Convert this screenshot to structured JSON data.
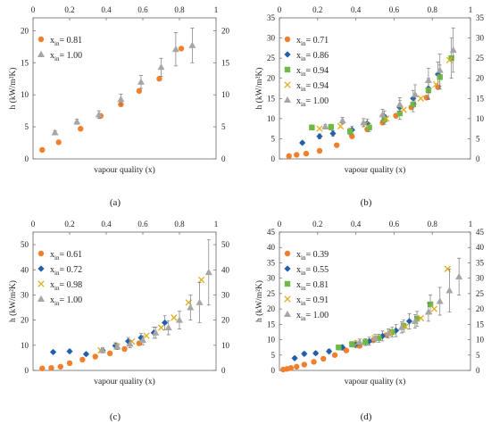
{
  "chart_data": [
    {
      "panel": "(a)",
      "type": "scatter",
      "xlabel": "vapour quality (x)",
      "ylabel": "h (kW/m²K)",
      "xlim": [
        0,
        1
      ],
      "ylim": [
        0,
        22
      ],
      "xticks": [
        "0",
        "0.2",
        "0.4",
        "0.6",
        "0.8",
        "1"
      ],
      "yticks": [
        0,
        5,
        10,
        15,
        20
      ],
      "yticks_right": [
        0,
        5,
        10,
        15,
        20
      ],
      "legend_pos": "top-left",
      "series": [
        {
          "name": "0.81",
          "marker": "circle",
          "color": "#f07f2e",
          "x": [
            0.05,
            0.14,
            0.26,
            0.37,
            0.48,
            0.58,
            0.69,
            0.81
          ],
          "y": [
            1.4,
            2.6,
            4.7,
            6.7,
            8.5,
            10.6,
            12.5,
            17.2
          ],
          "err": [
            0,
            0,
            0,
            0,
            0,
            0,
            0,
            0
          ]
        },
        {
          "name": "1.00",
          "marker": "triangle",
          "color": "#a6a6a6",
          "x": [
            0.12,
            0.24,
            0.36,
            0.48,
            0.59,
            0.7,
            0.78,
            0.87
          ],
          "y": [
            4.1,
            5.8,
            6.9,
            9.3,
            12.0,
            14.3,
            17.1,
            17.7
          ],
          "err": [
            0.3,
            0.4,
            0.6,
            0.8,
            1.0,
            1.4,
            2.6,
            2.7
          ]
        }
      ]
    },
    {
      "panel": "(b)",
      "type": "scatter",
      "xlabel": "vapour quality (x)",
      "ylabel": "h (kW/m²K)",
      "xlim": [
        0,
        1
      ],
      "ylim": [
        0,
        35
      ],
      "xticks": [
        "0",
        "0.2",
        "0.4",
        "0.6",
        "0.8",
        "1"
      ],
      "yticks": [
        0,
        5,
        10,
        15,
        20,
        25,
        30,
        35
      ],
      "yticks_right": [
        0,
        5,
        10,
        15,
        20,
        25,
        30,
        35
      ],
      "legend_pos": "top-left",
      "series": [
        {
          "name": "0.71",
          "marker": "circle",
          "color": "#f07f2e",
          "x": [
            0.05,
            0.09,
            0.14,
            0.21,
            0.3,
            0.38,
            0.46,
            0.54,
            0.61,
            0.69,
            0.77,
            0.83
          ],
          "y": [
            0.7,
            1.0,
            1.3,
            2.0,
            3.4,
            5.6,
            7.3,
            9.0,
            10.7,
            12.8,
            15.2,
            17.8
          ],
          "err": [
            0,
            0,
            0,
            0,
            0,
            0,
            0,
            0,
            0,
            0,
            0,
            0
          ]
        },
        {
          "name": "0.86",
          "marker": "diamond",
          "color": "#1f5fae",
          "x": [
            0.12,
            0.21,
            0.28,
            0.38,
            0.46,
            0.55,
            0.63,
            0.7,
            0.78,
            0.83
          ],
          "y": [
            4.0,
            5.6,
            6.3,
            7.2,
            8.8,
            10.5,
            12.8,
            15.0,
            17.5,
            21.0
          ],
          "err": [
            0.4,
            0.6,
            0.7,
            0.9,
            1.1,
            1.4,
            1.7,
            2.0,
            2.5,
            3.0
          ]
        },
        {
          "name": "0.94",
          "marker": "square",
          "color": "#6dba45",
          "x": [
            0.17,
            0.27,
            0.37,
            0.47,
            0.55,
            0.63,
            0.7,
            0.78,
            0.84,
            0.9
          ],
          "y": [
            7.8,
            7.9,
            6.8,
            7.8,
            9.8,
            11.3,
            13.5,
            17.0,
            20.3,
            25.0
          ],
          "err": [
            0.6,
            0.7,
            0.8,
            1.0,
            1.2,
            1.5,
            1.8,
            2.3,
            3.0,
            5.0
          ]
        },
        {
          "name": "0.94",
          "marker": "x",
          "color": "#e0ad1d",
          "x": [
            0.21,
            0.32,
            0.45,
            0.56,
            0.65,
            0.74,
            0.82,
            0.89
          ],
          "y": [
            7.5,
            8.1,
            8.6,
            10.0,
            12.2,
            15.0,
            18.5,
            24.5
          ],
          "err": [
            0,
            0,
            0,
            0,
            0,
            0,
            0,
            0
          ]
        },
        {
          "name": "1.00",
          "marker": "triangle",
          "color": "#a6a6a6",
          "x": [
            0.24,
            0.33,
            0.44,
            0.54,
            0.63,
            0.71,
            0.78,
            0.84,
            0.91
          ],
          "y": [
            8.0,
            9.5,
            9.0,
            11.0,
            13.5,
            16.0,
            19.5,
            22.0,
            27.0
          ],
          "err": [
            0.6,
            0.8,
            1.0,
            1.3,
            1.7,
            2.4,
            3.0,
            4.0,
            5.5
          ]
        }
      ]
    },
    {
      "panel": "(c)",
      "type": "scatter",
      "xlabel": "vapour quality (x)",
      "ylabel": "h (kW/m²K)",
      "xlim": [
        0,
        1
      ],
      "ylim": [
        0,
        55
      ],
      "xticks": [
        "0",
        "0.2",
        "0.4",
        "0.6",
        "0.8",
        "1"
      ],
      "yticks": [
        0,
        10,
        20,
        30,
        40,
        50
      ],
      "yticks_right": [
        0,
        10,
        20,
        30,
        40,
        50
      ],
      "legend_pos": "top-left",
      "series": [
        {
          "name": "0.61",
          "marker": "circle",
          "color": "#f07f2e",
          "x": [
            0.05,
            0.1,
            0.15,
            0.2,
            0.27,
            0.34,
            0.42,
            0.5,
            0.58
          ],
          "y": [
            0.8,
            1.0,
            1.5,
            2.9,
            4.3,
            5.5,
            6.8,
            8.5,
            10.8
          ],
          "err": [
            0,
            0,
            0,
            0,
            0,
            0,
            0,
            0,
            0
          ]
        },
        {
          "name": "0.72",
          "marker": "diamond",
          "color": "#1f5fae",
          "x": [
            0.11,
            0.2,
            0.29,
            0.38,
            0.45,
            0.52,
            0.59,
            0.66,
            0.72
          ],
          "y": [
            7.3,
            7.6,
            6.5,
            8.0,
            9.8,
            11.6,
            13.0,
            15.0,
            19.0
          ],
          "err": [
            0.6,
            0.6,
            0.7,
            0.9,
            1.2,
            1.5,
            1.8,
            2.2,
            2.8
          ]
        },
        {
          "name": "0.98",
          "marker": "x",
          "color": "#e0ad1d",
          "x": [
            0.37,
            0.46,
            0.54,
            0.62,
            0.7,
            0.77,
            0.85,
            0.92
          ],
          "y": [
            8.0,
            9.5,
            11.5,
            13.8,
            17.0,
            21.0,
            27.0,
            36.0
          ],
          "err": [
            0,
            0,
            0,
            0,
            0,
            0,
            0,
            0
          ]
        },
        {
          "name": "1.00",
          "marker": "triangle",
          "color": "#a6a6a6",
          "x": [
            0.38,
            0.46,
            0.53,
            0.6,
            0.67,
            0.74,
            0.8,
            0.86,
            0.91,
            0.96
          ],
          "y": [
            8.0,
            9.5,
            10.5,
            12.0,
            15.0,
            17.0,
            20.0,
            25.0,
            27.0,
            39.0
          ],
          "err": [
            1.0,
            1.2,
            1.4,
            1.8,
            2.2,
            2.8,
            3.5,
            5.0,
            8.0,
            13.0
          ]
        }
      ]
    },
    {
      "panel": "(d)",
      "type": "scatter",
      "xlabel": "vapour quality (x)",
      "ylabel": "h (kW/m²K)",
      "xlim": [
        0,
        1
      ],
      "ylim": [
        0,
        45
      ],
      "xticks": [
        "0",
        "0.2",
        "0.4",
        "0.6",
        "0.8",
        "1"
      ],
      "yticks": [
        0,
        5,
        10,
        15,
        20,
        25,
        30,
        35,
        40,
        45
      ],
      "yticks_right": [
        0,
        5,
        10,
        15,
        20,
        25,
        30,
        35,
        40,
        45
      ],
      "legend_pos": "top-left",
      "series": [
        {
          "name": "0.39",
          "marker": "circle",
          "color": "#f07f2e",
          "x": [
            0.02,
            0.04,
            0.06,
            0.09,
            0.13,
            0.18,
            0.23,
            0.29,
            0.35,
            0.42,
            0.49,
            0.56
          ],
          "y": [
            0.3,
            0.5,
            0.8,
            1.2,
            1.9,
            2.8,
            3.8,
            5.0,
            6.5,
            8.0,
            9.8,
            11.5
          ],
          "err": [
            0,
            0,
            0,
            0,
            0,
            0,
            0,
            0,
            0,
            0,
            0,
            0
          ]
        },
        {
          "name": "0.55",
          "marker": "diamond",
          "color": "#1f5fae",
          "x": [
            0.08,
            0.13,
            0.19,
            0.26,
            0.33,
            0.4,
            0.47,
            0.54,
            0.61,
            0.68
          ],
          "y": [
            4.0,
            5.4,
            5.6,
            6.2,
            7.5,
            8.5,
            9.5,
            11.2,
            13.0,
            16.0
          ],
          "err": [
            0.5,
            0.6,
            0.6,
            0.7,
            0.9,
            1.1,
            1.3,
            1.6,
            2.0,
            2.5
          ]
        },
        {
          "name": "0.81",
          "marker": "square",
          "color": "#6dba45",
          "x": [
            0.31,
            0.38,
            0.45,
            0.52,
            0.59,
            0.65,
            0.72,
            0.79
          ],
          "y": [
            7.5,
            8.5,
            9.2,
            10.5,
            12.5,
            14.5,
            16.8,
            21.5
          ],
          "err": [
            0.8,
            0.9,
            1.1,
            1.3,
            1.6,
            2.0,
            2.4,
            3.0
          ]
        },
        {
          "name": "0.91",
          "marker": "x",
          "color": "#e0ad1d",
          "x": [
            0.41,
            0.5,
            0.58,
            0.66,
            0.74,
            0.81,
            0.88
          ],
          "y": [
            9.0,
            10.5,
            12.2,
            14.2,
            17.0,
            20.0,
            33.0
          ],
          "err": [
            0,
            0,
            0,
            0,
            0,
            0,
            0
          ]
        },
        {
          "name": "1.00",
          "marker": "triangle",
          "color": "#a6a6a6",
          "x": [
            0.42,
            0.5,
            0.57,
            0.64,
            0.71,
            0.78,
            0.84,
            0.89,
            0.94
          ],
          "y": [
            9.2,
            10.5,
            12.0,
            14.0,
            16.0,
            19.0,
            22.5,
            26.0,
            30.5
          ],
          "err": [
            1.0,
            1.2,
            1.5,
            1.8,
            2.2,
            3.0,
            4.5,
            7.0,
            6.0
          ]
        }
      ]
    }
  ],
  "legend_prefix": "x",
  "legend_sub": "in",
  "legend_eq": "= "
}
